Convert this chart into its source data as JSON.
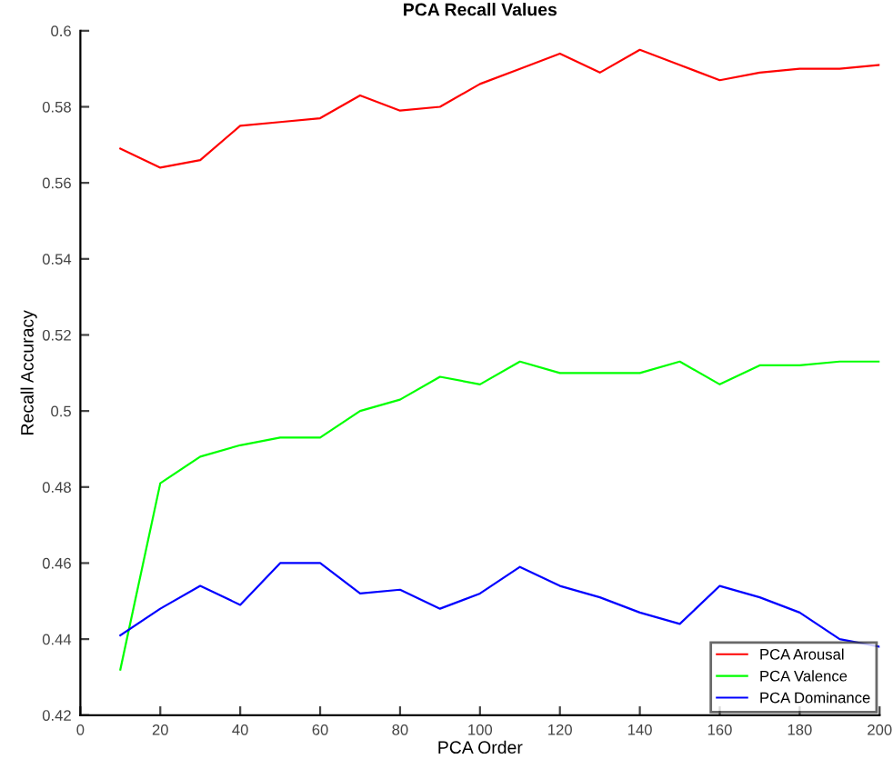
{
  "chart_data": {
    "type": "line",
    "title": "PCA Recall Values",
    "xlabel": "PCA Order",
    "ylabel": "Recall Accuracy",
    "x": [
      10,
      20,
      30,
      40,
      50,
      60,
      70,
      80,
      90,
      100,
      110,
      120,
      130,
      140,
      150,
      160,
      170,
      180,
      190,
      200
    ],
    "series": [
      {
        "name": "PCA Arousal",
        "color": "#ff0000",
        "values": [
          0.569,
          0.564,
          0.566,
          0.575,
          0.576,
          0.577,
          0.583,
          0.579,
          0.58,
          0.586,
          0.59,
          0.594,
          0.589,
          0.595,
          0.591,
          0.587,
          0.589,
          0.59,
          0.59,
          0.591
        ]
      },
      {
        "name": "PCA Valence",
        "color": "#00ff00",
        "values": [
          0.432,
          0.481,
          0.488,
          0.491,
          0.493,
          0.493,
          0.5,
          0.503,
          0.509,
          0.507,
          0.513,
          0.51,
          0.51,
          0.51,
          0.513,
          0.507,
          0.512,
          0.512,
          0.513,
          0.513
        ]
      },
      {
        "name": "PCA Dominance",
        "color": "#0000ff",
        "values": [
          0.441,
          0.448,
          0.454,
          0.449,
          0.46,
          0.46,
          0.452,
          0.453,
          0.448,
          0.452,
          0.459,
          0.454,
          0.451,
          0.447,
          0.444,
          0.454,
          0.451,
          0.447,
          0.44,
          0.438
        ]
      }
    ],
    "xlim": [
      0,
      200
    ],
    "xticks": [
      0,
      20,
      40,
      60,
      80,
      100,
      120,
      140,
      160,
      180,
      200
    ],
    "ylim": [
      0.42,
      0.6
    ],
    "yticks": [
      0.42,
      0.44,
      0.46,
      0.48,
      0.5,
      0.52,
      0.54,
      0.56,
      0.58,
      0.6
    ],
    "grid": false,
    "legend": "bottom right",
    "marker": "none",
    "line_style": "solid"
  }
}
